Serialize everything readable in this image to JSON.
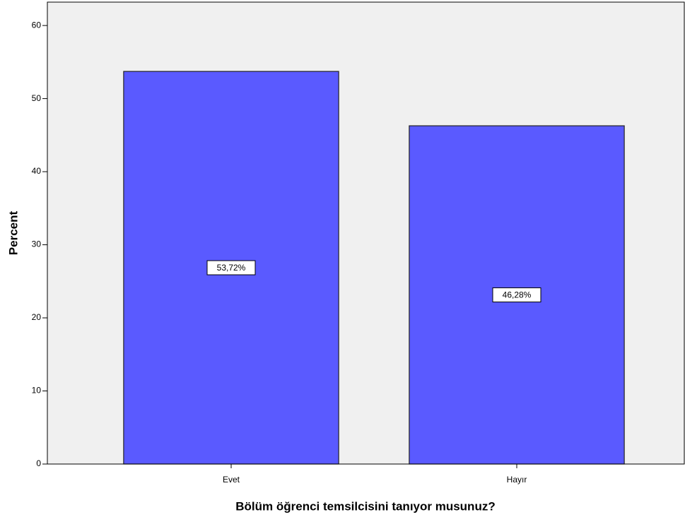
{
  "chart_data": {
    "type": "bar",
    "x_label": "Bölüm öğrenci temsilcisini tanıyor musunuz?",
    "y_label": "Percent",
    "categories": [
      "Evet",
      "Hayır"
    ],
    "values": [
      53.72,
      46.28
    ],
    "value_labels": [
      "53,72%",
      "46,28%"
    ],
    "color": "#5a5aff",
    "ylim": [
      0,
      63.2
    ],
    "yticks": [
      0,
      10,
      20,
      30,
      40,
      50,
      60
    ],
    "grid": false
  }
}
